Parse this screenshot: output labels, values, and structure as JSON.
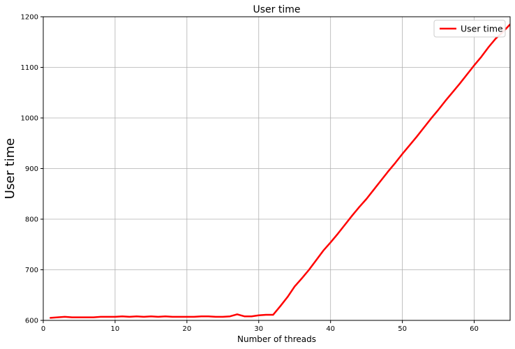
{
  "chart_data": {
    "type": "line",
    "title": "User time",
    "xlabel": "Number of threads",
    "ylabel": "User time",
    "xlim": [
      0,
      65
    ],
    "ylim": [
      600,
      1200
    ],
    "xticks": [
      0,
      10,
      20,
      30,
      40,
      50,
      60
    ],
    "yticks": [
      600,
      700,
      800,
      900,
      1000,
      1100,
      1200
    ],
    "grid": true,
    "legend_position": "top-right",
    "series": [
      {
        "name": "User time",
        "color": "#ff0000",
        "x": [
          1,
          2,
          3,
          4,
          5,
          6,
          7,
          8,
          9,
          10,
          11,
          12,
          13,
          14,
          15,
          16,
          17,
          18,
          19,
          20,
          21,
          22,
          23,
          24,
          25,
          26,
          27,
          28,
          29,
          30,
          31,
          32,
          33,
          34,
          35,
          36,
          37,
          38,
          39,
          40,
          41,
          42,
          43,
          44,
          45,
          46,
          47,
          48,
          49,
          50,
          51,
          52,
          53,
          54,
          55,
          56,
          57,
          58,
          59,
          60,
          61,
          62,
          63,
          64,
          65
        ],
        "y": [
          605,
          606,
          607,
          606,
          606,
          606,
          606,
          607,
          607,
          607,
          608,
          607,
          608,
          607,
          608,
          607,
          608,
          607,
          607,
          607,
          607,
          608,
          608,
          607,
          607,
          608,
          612,
          608,
          608,
          610,
          611,
          611,
          628,
          646,
          667,
          683,
          700,
          719,
          738,
          754,
          771,
          789,
          807,
          824,
          840,
          858,
          876,
          894,
          911,
          929,
          946,
          963,
          981,
          999,
          1016,
          1034,
          1051,
          1068,
          1086,
          1104,
          1121,
          1140,
          1157,
          1170,
          1185
        ]
      }
    ]
  }
}
